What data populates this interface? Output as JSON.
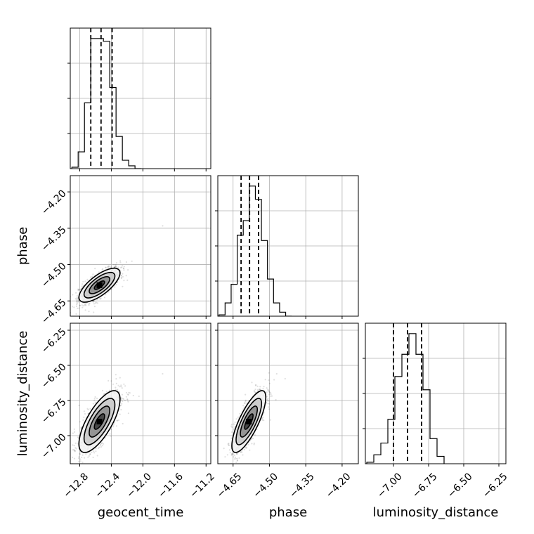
{
  "chart_data": {
    "type": "corner",
    "parameters": [
      "geocent_time",
      "phase",
      "luminosity_distance"
    ],
    "axis_labels": {
      "geocent_time": "geocent_time",
      "phase": "phase",
      "luminosity_distance": "luminosity_distance"
    },
    "ranges": {
      "geocent_time": [
        -12.92,
        -11.14
      ],
      "phase": [
        -4.713,
        -4.133
      ],
      "luminosity_distance": [
        -7.2,
        -6.2
      ]
    },
    "ticks": {
      "geocent_time": [
        {
          "v": -12.8,
          "label": "−12.8"
        },
        {
          "v": -12.4,
          "label": "−12.4"
        },
        {
          "v": -12.0,
          "label": "−12.0"
        },
        {
          "v": -11.6,
          "label": "−11.6"
        },
        {
          "v": -11.2,
          "label": "−11.2"
        }
      ],
      "phase": [
        {
          "v": -4.65,
          "label": "−4.65"
        },
        {
          "v": -4.5,
          "label": "−4.50"
        },
        {
          "v": -4.35,
          "label": "−4.35"
        },
        {
          "v": -4.2,
          "label": "−4.20"
        }
      ],
      "luminosity_distance": [
        {
          "v": -7.0,
          "label": "−7.00"
        },
        {
          "v": -6.75,
          "label": "−6.75"
        },
        {
          "v": -6.5,
          "label": "−6.50"
        },
        {
          "v": -6.25,
          "label": "−6.25"
        }
      ]
    },
    "grid": true,
    "histograms": {
      "geocent_time": {
        "edges": [
          -12.9,
          -12.82,
          -12.74,
          -12.66,
          -12.58,
          -12.5,
          -12.42,
          -12.34,
          -12.26,
          -12.18,
          -12.1,
          -12.02
        ],
        "counts": [
          0.01,
          0.12,
          0.47,
          0.93,
          0.93,
          0.91,
          0.58,
          0.23,
          0.06,
          0.02,
          0.0
        ]
      },
      "phase": {
        "edges": [
          -4.708,
          -4.683,
          -4.658,
          -4.633,
          -4.608,
          -4.583,
          -4.558,
          -4.533,
          -4.508,
          -4.483,
          -4.458,
          -4.433,
          -4.408
        ],
        "counts": [
          0.01,
          0.1,
          0.24,
          0.61,
          0.72,
          0.98,
          0.88,
          0.57,
          0.28,
          0.1,
          0.03,
          0.0
        ]
      },
      "luminosity_distance": {
        "edges": [
          -7.19,
          -7.14,
          -7.09,
          -7.04,
          -6.99,
          -6.94,
          -6.89,
          -6.84,
          -6.79,
          -6.74,
          -6.69,
          -6.64
        ],
        "counts": [
          0.01,
          0.06,
          0.14,
          0.3,
          0.59,
          0.74,
          0.88,
          0.74,
          0.5,
          0.17,
          0.05
        ]
      }
    },
    "quantiles": {
      "geocent_time": [
        -12.66,
        -12.53,
        -12.39
      ],
      "phase": [
        -4.617,
        -4.582,
        -4.545
      ],
      "luminosity_distance": [
        -7.0,
        -6.9,
        -6.8
      ]
    },
    "correlations": {
      "phase|geocent_time": {
        "center": [
          -12.55,
          -4.585
        ],
        "sd": [
          0.13,
          0.035
        ],
        "rho": 0.72,
        "outliers": [
          [
            -11.75,
            -4.34
          ]
        ]
      },
      "luminosity_distance|geocent_time": {
        "center": [
          -12.55,
          -6.9
        ],
        "sd": [
          0.13,
          0.11
        ],
        "rho": 0.72,
        "outliers": [
          [
            -11.75,
            -6.56
          ],
          [
            -12.05,
            -6.72
          ]
        ]
      },
      "luminosity_distance|phase": {
        "center": [
          -4.585,
          -6.9
        ],
        "sd": [
          0.035,
          0.11
        ],
        "rho": 0.78,
        "outliers": [
          [
            -4.47,
            -6.56
          ]
        ]
      }
    },
    "contour_levels_sigma": [
      0.5,
      1.0,
      1.5,
      2.0
    ]
  }
}
